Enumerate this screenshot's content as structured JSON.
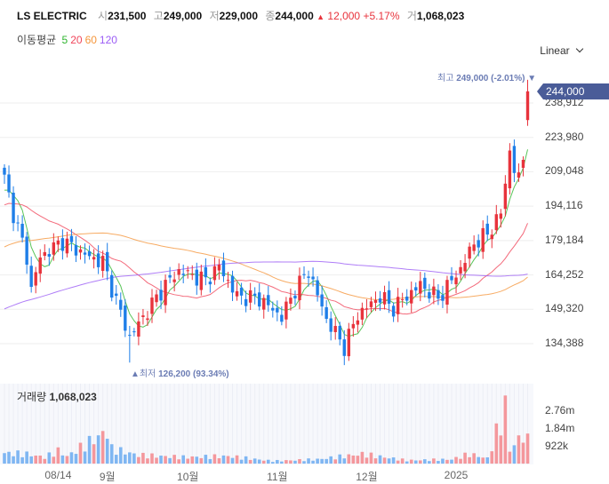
{
  "header": {
    "name": "LS ELECTRIC",
    "open_label": "시",
    "open": "231,500",
    "high_label": "고",
    "high": "249,000",
    "low_label": "저",
    "low": "229,000",
    "close_label": "종",
    "close": "244,000",
    "change_arrow": "▲",
    "change": "12,000",
    "change_pct": "+5.17%",
    "volume_label": "거",
    "volume": "1,068,023"
  },
  "ma_legend": {
    "label": "이동평균",
    "periods": [
      "5",
      "20",
      "60",
      "120"
    ],
    "colors": [
      "#2fb52f",
      "#f0455a",
      "#f5963c",
      "#9b5cf5"
    ]
  },
  "scale_button": "Linear",
  "colors": {
    "up": "#e8333c",
    "down": "#1e7ee8",
    "vol_up": "#f4979c",
    "vol_down": "#7fb6f2",
    "tag": "#4a5c98"
  },
  "price_tag": "244,000",
  "high_note": {
    "label": "최고",
    "value": "249,000 (-2.01%)",
    "arrow": "▼"
  },
  "low_note": {
    "arrow": "▲",
    "label": "최저",
    "value": "126,200 (93.34%)"
  },
  "volume_panel": {
    "label": "거래량",
    "value": "1,068,023",
    "axis": [
      "2.76m",
      "1.84m",
      "922k"
    ]
  },
  "chart_data": {
    "type": "candlestick",
    "y_ticks": [
      "238,912",
      "223,980",
      "209,048",
      "194,116",
      "179,184",
      "164,252",
      "149,320",
      "134,388"
    ],
    "y_tick_values": [
      238912,
      223980,
      209048,
      194116,
      179184,
      164252,
      149320,
      134388
    ],
    "x_labels": [
      "08/14",
      "9월",
      "10월",
      "11월",
      "12월",
      "2025"
    ],
    "x_label_index": [
      12,
      23,
      41,
      61,
      81,
      101
    ],
    "count": 118,
    "close_keypoints": [
      [
        0,
        206000
      ],
      [
        2,
        191000
      ],
      [
        5,
        172000
      ],
      [
        6,
        158000
      ],
      [
        8,
        172000
      ],
      [
        13,
        179000
      ],
      [
        19,
        172000
      ],
      [
        22,
        170000
      ],
      [
        25,
        153000
      ],
      [
        28,
        137000
      ],
      [
        31,
        146000
      ],
      [
        36,
        160000
      ],
      [
        39,
        166000
      ],
      [
        45,
        162000
      ],
      [
        48,
        168000
      ],
      [
        52,
        155000
      ],
      [
        57,
        154000
      ],
      [
        62,
        146000
      ],
      [
        65,
        158000
      ],
      [
        68,
        166000
      ],
      [
        72,
        145000
      ],
      [
        76,
        133000
      ],
      [
        79,
        147000
      ],
      [
        84,
        155000
      ],
      [
        87,
        150000
      ],
      [
        93,
        160000
      ],
      [
        97,
        154000
      ],
      [
        102,
        167000
      ],
      [
        105,
        178000
      ],
      [
        108,
        182000
      ],
      [
        111,
        191000
      ],
      [
        113,
        218000
      ],
      [
        114,
        210000
      ],
      [
        115,
        206000
      ],
      [
        116,
        215000
      ],
      [
        117,
        244000
      ]
    ],
    "volume_keypoints": [
      [
        0,
        500000
      ],
      [
        5,
        450000
      ],
      [
        9,
        300000
      ],
      [
        12,
        600000
      ],
      [
        14,
        350000
      ],
      [
        23,
        1550000
      ],
      [
        24,
        700000
      ],
      [
        30,
        400000
      ],
      [
        40,
        300000
      ],
      [
        50,
        350000
      ],
      [
        60,
        120000
      ],
      [
        70,
        200000
      ],
      [
        80,
        450000
      ],
      [
        90,
        150000
      ],
      [
        100,
        200000
      ],
      [
        104,
        450000
      ],
      [
        108,
        250000
      ],
      [
        112,
        2600000
      ],
      [
        113,
        650000
      ],
      [
        116,
        1400000
      ],
      [
        117,
        1068023
      ]
    ],
    "high": 249000,
    "low": 126200
  }
}
